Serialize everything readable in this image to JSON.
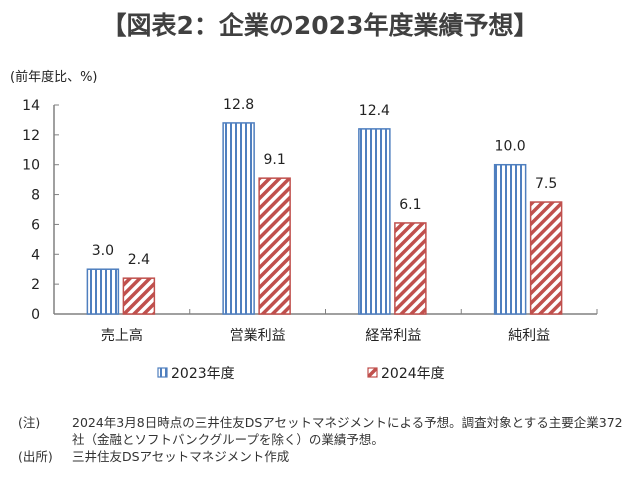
{
  "title": "【図表2：企業の2023年度業績予想】",
  "unit_label": "(前年度比、%)",
  "colors": {
    "series_2023": "#4f7fbf",
    "series_2024": "#c0504d",
    "axis": "#808080"
  },
  "chart_data": {
    "type": "bar",
    "title": "【図表2：企業の2023年度業績予想】",
    "ylabel": "(前年度比、%)",
    "xlabel": "",
    "categories": [
      "売上高",
      "営業利益",
      "経常利益",
      "純利益"
    ],
    "series": [
      {
        "name": "2023年度",
        "values": [
          3.0,
          12.8,
          12.4,
          10.0
        ],
        "labels": [
          "3.0",
          "12.8",
          "12.4",
          "10.0"
        ],
        "pattern": "vertical-stripes"
      },
      {
        "name": "2024年度",
        "values": [
          2.4,
          9.1,
          6.1,
          7.5
        ],
        "labels": [
          "2.4",
          "9.1",
          "6.1",
          "7.5"
        ],
        "pattern": "diagonal-stripes"
      }
    ],
    "ylim": [
      0,
      14
    ],
    "yticks": [
      "0",
      "2",
      "4",
      "6",
      "8",
      "10",
      "12",
      "14"
    ],
    "grid": false,
    "legend": "bottom"
  },
  "notes": [
    {
      "label": "(注)",
      "text": "2024年3月8日時点の三井住友DSアセットマネジメントによる予想。調査対象とする主要企業372社（金融とソフトバンクグループを除く）の業績予想。"
    },
    {
      "label": "(出所)",
      "text": "三井住友DSアセットマネジメント作成"
    }
  ]
}
